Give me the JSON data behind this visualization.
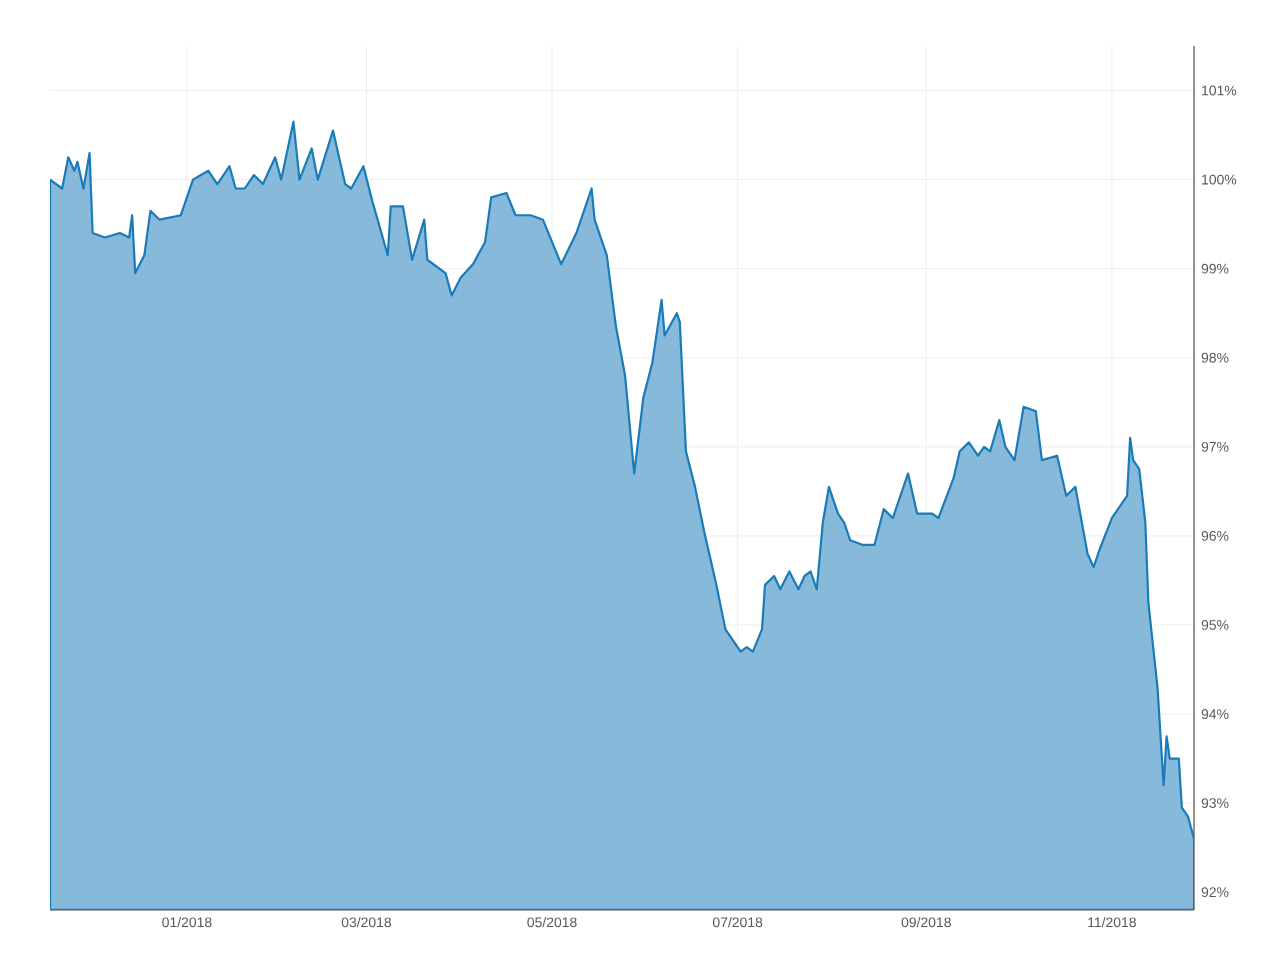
{
  "chart_data": {
    "type": "area",
    "x": [
      "2017-11-17",
      "2017-11-21",
      "2017-11-23",
      "2017-11-25",
      "2017-11-26",
      "2017-11-28",
      "2017-11-30",
      "2017-12-01",
      "2017-12-05",
      "2017-12-10",
      "2017-12-13",
      "2017-12-14",
      "2017-12-15",
      "2017-12-18",
      "2017-12-20",
      "2017-12-23",
      "2017-12-30",
      "2018-01-03",
      "2018-01-08",
      "2018-01-11",
      "2018-01-15",
      "2018-01-17",
      "2018-01-20",
      "2018-01-23",
      "2018-01-26",
      "2018-01-30",
      "2018-02-01",
      "2018-02-05",
      "2018-02-07",
      "2018-02-11",
      "2018-02-13",
      "2018-02-18",
      "2018-02-22",
      "2018-02-24",
      "2018-02-28",
      "2018-03-03",
      "2018-03-08",
      "2018-03-09",
      "2018-03-13",
      "2018-03-16",
      "2018-03-20",
      "2018-03-21",
      "2018-03-27",
      "2018-03-29",
      "2018-04-01",
      "2018-04-05",
      "2018-04-09",
      "2018-04-11",
      "2018-04-16",
      "2018-04-19",
      "2018-04-21",
      "2018-04-24",
      "2018-04-28",
      "2018-05-04",
      "2018-05-09",
      "2018-05-14",
      "2018-05-15",
      "2018-05-19",
      "2018-05-22",
      "2018-05-25",
      "2018-05-28",
      "2018-05-31",
      "2018-06-03",
      "2018-06-06",
      "2018-06-07",
      "2018-06-11",
      "2018-06-12",
      "2018-06-14",
      "2018-06-17",
      "2018-06-20",
      "2018-06-24",
      "2018-06-27",
      "2018-07-02",
      "2018-07-04",
      "2018-07-06",
      "2018-07-09",
      "2018-07-10",
      "2018-07-13",
      "2018-07-15",
      "2018-07-18",
      "2018-07-21",
      "2018-07-23",
      "2018-07-25",
      "2018-07-27",
      "2018-07-29",
      "2018-07-31",
      "2018-08-03",
      "2018-08-05",
      "2018-08-07",
      "2018-08-11",
      "2018-08-15",
      "2018-08-18",
      "2018-08-21",
      "2018-08-26",
      "2018-08-29",
      "2018-09-03",
      "2018-09-05",
      "2018-09-10",
      "2018-09-12",
      "2018-09-15",
      "2018-09-18",
      "2018-09-20",
      "2018-09-22",
      "2018-09-25",
      "2018-09-27",
      "2018-09-30",
      "2018-10-03",
      "2018-10-07",
      "2018-10-09",
      "2018-10-14",
      "2018-10-17",
      "2018-10-20",
      "2018-10-24",
      "2018-10-26",
      "2018-10-28",
      "2018-11-01",
      "2018-11-06",
      "2018-11-07",
      "2018-11-08",
      "2018-11-10",
      "2018-11-12",
      "2018-11-13",
      "2018-11-16",
      "2018-11-18",
      "2018-11-19",
      "2018-11-20",
      "2018-11-23",
      "2018-11-24",
      "2018-11-26",
      "2018-11-28"
    ],
    "series": [
      {
        "color": "#1a7bb9",
        "values": [
          100.0,
          99.9,
          100.25,
          100.1,
          100.2,
          99.9,
          100.3,
          99.4,
          99.35,
          99.4,
          99.35,
          99.6,
          98.95,
          99.15,
          99.65,
          99.55,
          99.6,
          100.0,
          100.1,
          99.95,
          100.15,
          99.9,
          99.9,
          100.05,
          99.95,
          100.25,
          100.0,
          100.65,
          100.0,
          100.35,
          100.0,
          100.55,
          99.95,
          99.9,
          100.15,
          99.75,
          99.15,
          99.7,
          99.7,
          99.1,
          99.55,
          99.1,
          98.95,
          98.7,
          98.9,
          99.05,
          99.3,
          99.8,
          99.85,
          99.6,
          99.6,
          99.6,
          99.55,
          99.05,
          99.4,
          99.9,
          99.55,
          99.15,
          98.35,
          97.8,
          96.7,
          97.55,
          97.95,
          98.65,
          98.25,
          98.5,
          98.4,
          96.95,
          96.55,
          96.05,
          95.45,
          94.95,
          94.7,
          94.75,
          94.7,
          94.95,
          95.45,
          95.55,
          95.4,
          95.6,
          95.4,
          95.55,
          95.6,
          95.4,
          96.15,
          96.55,
          96.25,
          96.15,
          95.95,
          95.9,
          95.9,
          96.3,
          96.2,
          96.7,
          96.25,
          96.25,
          96.2,
          96.65,
          96.95,
          97.05,
          96.9,
          97.0,
          96.95,
          97.3,
          97.0,
          96.85,
          97.45,
          97.4,
          96.85,
          96.9,
          96.45,
          96.55,
          95.8,
          95.65,
          95.85,
          96.2,
          96.45,
          97.1,
          96.85,
          96.75,
          96.15,
          95.25,
          94.3,
          93.2,
          93.75,
          93.5,
          93.5,
          92.95,
          92.85,
          92.6
        ]
      }
    ],
    "xlim": [
      "2017-11-17",
      "2018-11-28"
    ],
    "xticks": [
      {
        "value": "2018-01-01",
        "label": "01/2018"
      },
      {
        "value": "2018-03-01",
        "label": "03/2018"
      },
      {
        "value": "2018-05-01",
        "label": "05/2018"
      },
      {
        "value": "2018-07-01",
        "label": "07/2018"
      },
      {
        "value": "2018-09-01",
        "label": "09/2018"
      },
      {
        "value": "2018-11-01",
        "label": "11/2018"
      }
    ],
    "ylim": [
      91.8,
      101.5
    ],
    "yticks": [
      {
        "value": 92,
        "label": "92%"
      },
      {
        "value": 93,
        "label": "93%"
      },
      {
        "value": 94,
        "label": "94%"
      },
      {
        "value": 95,
        "label": "95%"
      },
      {
        "value": 96,
        "label": "96%"
      },
      {
        "value": 97,
        "label": "97%"
      },
      {
        "value": 98,
        "label": "98%"
      },
      {
        "value": 99,
        "label": "99%"
      },
      {
        "value": 100,
        "label": "100%"
      },
      {
        "value": 101,
        "label": "101%"
      }
    ],
    "grid": true
  }
}
